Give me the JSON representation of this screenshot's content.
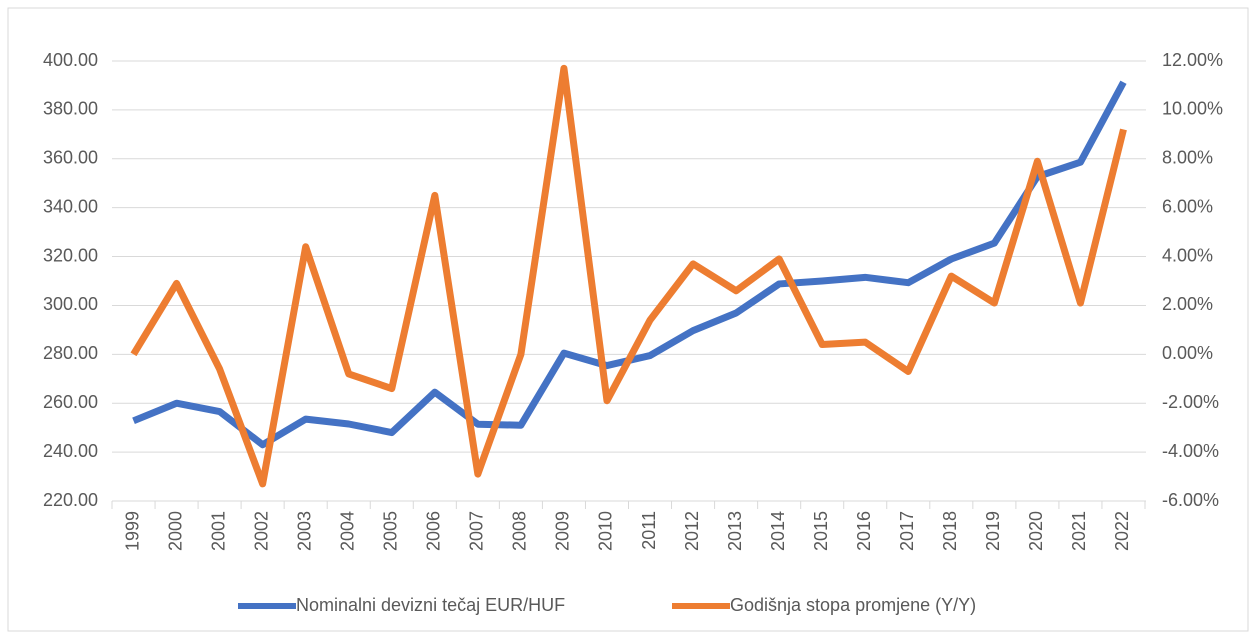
{
  "chart_data": {
    "type": "line",
    "categories": [
      "1999",
      "2000",
      "2001",
      "2002",
      "2003",
      "2004",
      "2005",
      "2006",
      "2007",
      "2008",
      "2009",
      "2010",
      "2011",
      "2012",
      "2013",
      "2014",
      "2015",
      "2016",
      "2017",
      "2018",
      "2019",
      "2020",
      "2021",
      "2022"
    ],
    "series": [
      {
        "name": "Nominalni devizni tečaj EUR/HUF",
        "color": "#4472c4",
        "axis": "y",
        "values": [
          252.8,
          260,
          256.6,
          243,
          253.5,
          251.5,
          248,
          264.5,
          251.4,
          251,
          280.5,
          275.4,
          279.5,
          289.7,
          296.9,
          308.8,
          310,
          311.5,
          309.3,
          319,
          325.5,
          352.7,
          358.6,
          391.3
        ]
      },
      {
        "name": "Godišnja stopa promjene (Y/Y)",
        "color": "#ed7d31",
        "axis": "y2",
        "values": [
          0.0,
          2.9,
          -0.6,
          -5.3,
          4.4,
          -0.8,
          -1.4,
          6.5,
          -4.9,
          0.0,
          11.7,
          -1.9,
          1.4,
          3.7,
          2.6,
          3.9,
          0.4,
          0.5,
          -0.7,
          3.2,
          2.1,
          7.9,
          2.1,
          9.2
        ]
      }
    ],
    "ylim": [
      220,
      400
    ],
    "yticks": [
      {
        "value": 220,
        "label": "220.00"
      },
      {
        "value": 240,
        "label": "240.00"
      },
      {
        "value": 260,
        "label": "260.00"
      },
      {
        "value": 280,
        "label": "280.00"
      },
      {
        "value": 300,
        "label": "300.00"
      },
      {
        "value": 320,
        "label": "320.00"
      },
      {
        "value": 340,
        "label": "340.00"
      },
      {
        "value": 360,
        "label": "360.00"
      },
      {
        "value": 380,
        "label": "380.00"
      },
      {
        "value": 400,
        "label": "400.00"
      }
    ],
    "y2lim": [
      -6,
      12
    ],
    "y2ticks": [
      {
        "value": -6,
        "label": "-6.00%"
      },
      {
        "value": -4,
        "label": "-4.00%"
      },
      {
        "value": -2,
        "label": "-2.00%"
      },
      {
        "value": 0,
        "label": "0.00%"
      },
      {
        "value": 2,
        "label": "2.00%"
      },
      {
        "value": 4,
        "label": "4.00%"
      },
      {
        "value": 6,
        "label": "6.00%"
      },
      {
        "value": 8,
        "label": "8.00%"
      },
      {
        "value": 10,
        "label": "10.00%"
      },
      {
        "value": 12,
        "label": "12.00%"
      }
    ],
    "grid": true,
    "legend": "bottom"
  }
}
